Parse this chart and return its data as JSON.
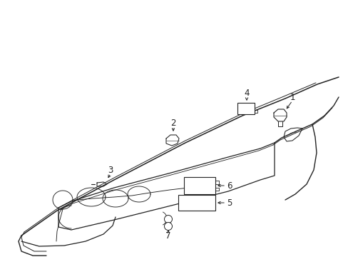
{
  "bg_color": "#ffffff",
  "lc": "#222222",
  "lw_main": 1.0,
  "lw_thin": 0.65,
  "label_fs": 8.5
}
